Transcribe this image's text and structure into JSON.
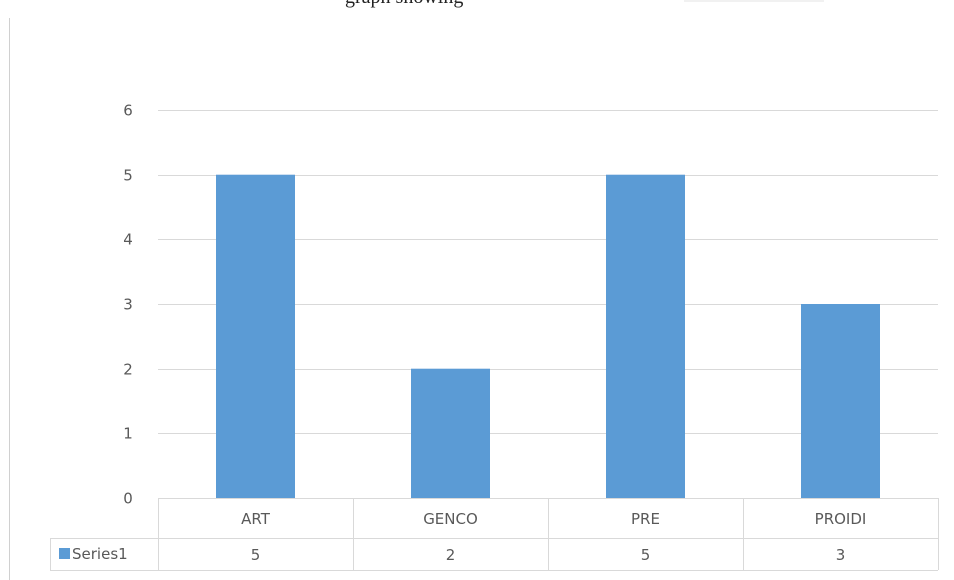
{
  "caption": {
    "text": "graph showing"
  },
  "colors": {
    "bar": "#5b9bd5",
    "grid": "#d9d9d9",
    "text": "#595959"
  },
  "chart_data": {
    "type": "bar",
    "categories": [
      "ART",
      "GENCO",
      "PRE",
      "PROIDI"
    ],
    "series": [
      {
        "name": "Series1",
        "values": [
          5,
          2,
          5,
          3
        ]
      }
    ],
    "title": "",
    "xlabel": "",
    "ylabel": "",
    "ylim": [
      0,
      6
    ],
    "yticks": [
      "0",
      "1",
      "2",
      "3",
      "4",
      "5",
      "6"
    ],
    "grid": true,
    "legend": "data-table-left",
    "data_table": true
  }
}
